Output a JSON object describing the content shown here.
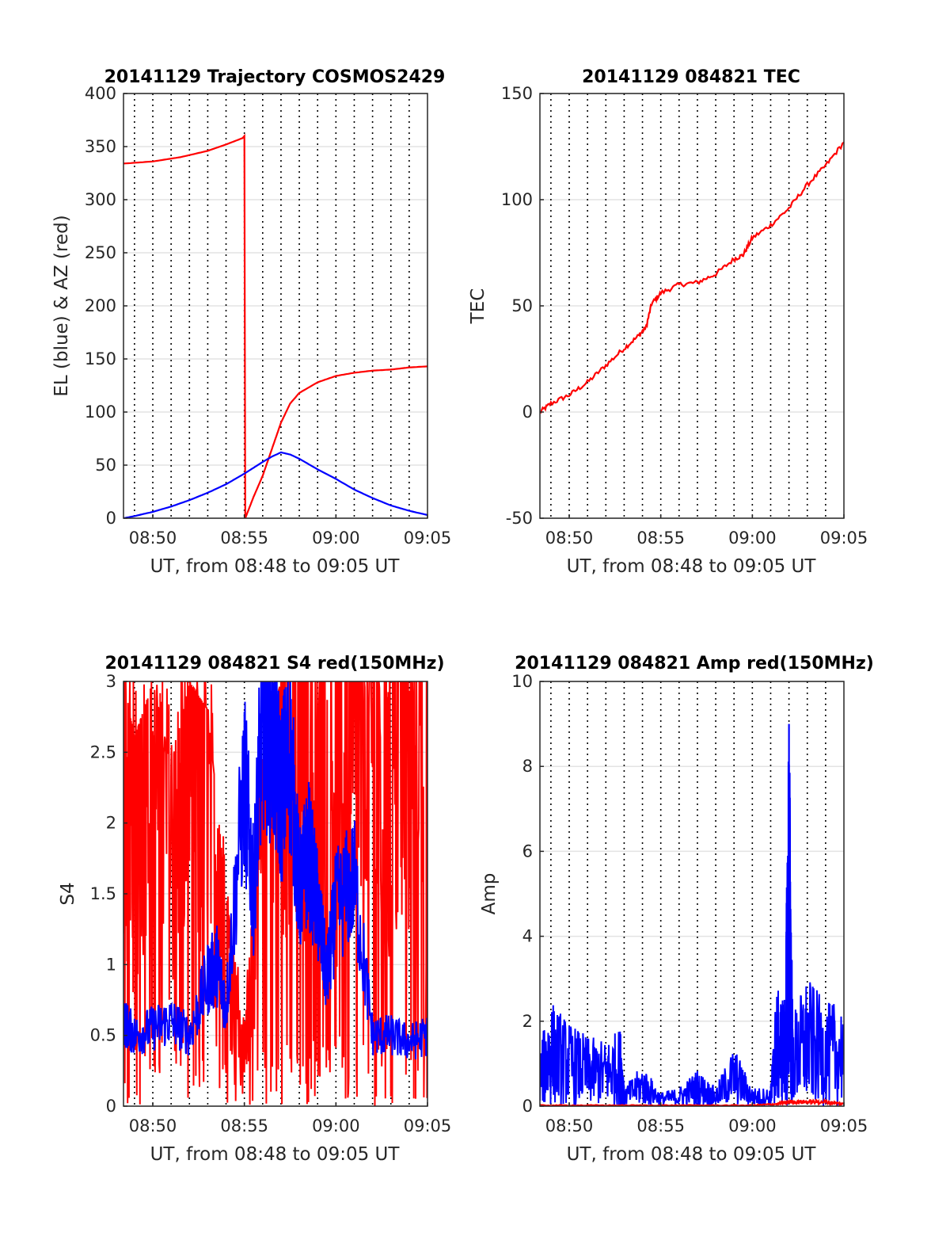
{
  "chart_data": [
    {
      "type": "line",
      "title": "20141129 Trajectory COSMOS2429",
      "xlabel": "UT, from 08:48 to 09:05 UT",
      "ylabel": "EL (blue) & AZ (red)",
      "xlim": [
        8.4,
        25.0
      ],
      "ylim": [
        0,
        400
      ],
      "x_tick_values": [
        10,
        15,
        20,
        25
      ],
      "x_tick_labels": [
        "08:50",
        "08:55",
        "09:00",
        "09:05"
      ],
      "y_ticks": [
        0,
        50,
        100,
        150,
        200,
        250,
        300,
        350,
        400
      ],
      "grid": "x dotted every minute, y light gray",
      "x_unit": "minutes after 08:40",
      "series": [
        {
          "color": "#ff0000",
          "x": [
            8.4,
            10,
            11.5,
            13,
            14,
            14.9,
            15.0,
            15.05,
            15.5,
            16,
            16.5,
            17,
            17.5,
            18,
            19,
            20,
            21,
            22,
            23,
            24,
            25
          ],
          "values": [
            334,
            336,
            340,
            346,
            352,
            358,
            360,
            0,
            20,
            40,
            65,
            90,
            108,
            118,
            128,
            134,
            137,
            139,
            140,
            142,
            143
          ]
        },
        {
          "color": "#0000ff",
          "x": [
            8.4,
            9,
            10,
            11,
            12,
            13,
            14,
            15,
            16,
            16.5,
            17,
            17.5,
            18,
            19,
            20,
            21,
            22,
            23,
            24,
            25
          ],
          "values": [
            0,
            2,
            6,
            11,
            17,
            24,
            32,
            42,
            53,
            58,
            62,
            60,
            56,
            46,
            37,
            27,
            19,
            12,
            7,
            3
          ]
        }
      ]
    },
    {
      "type": "line",
      "title": "20141129 084821 TEC",
      "xlabel": "UT, from 08:48 to 09:05 UT",
      "ylabel": "TEC",
      "xlim": [
        8.4,
        25.0
      ],
      "ylim": [
        -50,
        150
      ],
      "x_tick_values": [
        10,
        15,
        20,
        25
      ],
      "x_tick_labels": [
        "08:50",
        "08:55",
        "09:00",
        "09:05"
      ],
      "y_ticks": [
        -50,
        0,
        50,
        100,
        150
      ],
      "grid": "x dotted every minute, y light gray",
      "x_unit": "minutes after 08:40",
      "series": [
        {
          "color": "#ff0000",
          "x": [
            8.4,
            9,
            10,
            11,
            12,
            13,
            13.8,
            14.2,
            14.5,
            15,
            16,
            17,
            18,
            19,
            19.5,
            20,
            21,
            22,
            23,
            24,
            25
          ],
          "values": [
            0,
            4,
            8,
            14,
            22,
            30,
            36,
            40,
            51,
            56,
            60,
            61,
            65,
            72,
            74,
            82,
            88,
            96,
            107,
            116,
            127
          ]
        }
      ]
    },
    {
      "type": "line",
      "title": "20141129 084821 S4 red(150MHz)",
      "xlabel": "UT, from 08:48 to 09:05 UT",
      "ylabel": "S4",
      "xlim": [
        8.4,
        25.0
      ],
      "ylim": [
        0,
        3
      ],
      "x_tick_values": [
        10,
        15,
        20,
        25
      ],
      "x_tick_labels": [
        "08:50",
        "08:55",
        "09:00",
        "09:05"
      ],
      "y_ticks": [
        "0",
        "0.5",
        "1",
        "1.5",
        "2",
        "2.5",
        "3"
      ],
      "grid": "x dotted every minute, y light gray",
      "x_unit": "minutes after 08:40",
      "series": [
        {
          "color": "#ff0000",
          "description_level": "fills axis 0-3, noisy spikes",
          "x": [
            8.4,
            9,
            10,
            11,
            12,
            13,
            14,
            15,
            16,
            17,
            18,
            19,
            20,
            21,
            22,
            23,
            24,
            25
          ],
          "values": [
            3,
            2.6,
            3,
            2.4,
            3,
            2.8,
            1.5,
            0.5,
            2.5,
            3,
            3,
            3,
            3,
            3,
            3,
            3,
            3,
            3
          ]
        },
        {
          "color": "#0000ff",
          "x": [
            8.4,
            9,
            10,
            11,
            12,
            13,
            13.5,
            14,
            15,
            15.5,
            16,
            16.5,
            17,
            17.5,
            18,
            18.5,
            19,
            19.5,
            20,
            21,
            22,
            23,
            24,
            25
          ],
          "values": [
            0.6,
            0.5,
            0.55,
            0.6,
            0.5,
            0.9,
            1.0,
            0.7,
            2.3,
            1.5,
            2.8,
            2.6,
            2.2,
            2.5,
            1.5,
            1.8,
            1.4,
            0.9,
            1.4,
            1.6,
            0.5,
            0.5,
            0.45,
            0.5
          ]
        }
      ]
    },
    {
      "type": "line",
      "title": "20141129 084821 Amp red(150MHz)",
      "xlabel": "UT, from 08:48 to 09:05 UT",
      "ylabel": "Amp",
      "xlim": [
        8.4,
        25.0
      ],
      "ylim": [
        0,
        10
      ],
      "x_tick_values": [
        10,
        15,
        20,
        25
      ],
      "x_tick_labels": [
        "08:50",
        "08:55",
        "09:00",
        "09:05"
      ],
      "y_ticks": [
        0,
        2,
        4,
        6,
        8,
        10
      ],
      "grid": "x dotted every minute, y light gray",
      "x_unit": "minutes after 08:40",
      "series": [
        {
          "color": "#0000ff",
          "x": [
            8.4,
            9,
            10,
            11,
            12,
            12.8,
            13,
            14,
            15,
            16,
            17,
            18,
            19,
            20,
            21,
            21.3,
            21.8,
            22,
            22.2,
            23,
            24,
            25
          ],
          "values": [
            1.3,
            2.3,
            1.8,
            1.5,
            1.4,
            1.7,
            0.4,
            0.9,
            0.3,
            0.4,
            0.8,
            0.4,
            1.3,
            0.4,
            0.4,
            2.5,
            2.4,
            9.0,
            2.0,
            2.8,
            2.2,
            2.3
          ]
        },
        {
          "color": "#ff0000",
          "x": [
            8.4,
            12,
            16,
            20,
            21.3,
            22,
            23,
            24,
            25
          ],
          "values": [
            0.02,
            0.02,
            0.02,
            0.02,
            0.05,
            0.1,
            0.1,
            0.1,
            0.05
          ]
        }
      ]
    }
  ]
}
